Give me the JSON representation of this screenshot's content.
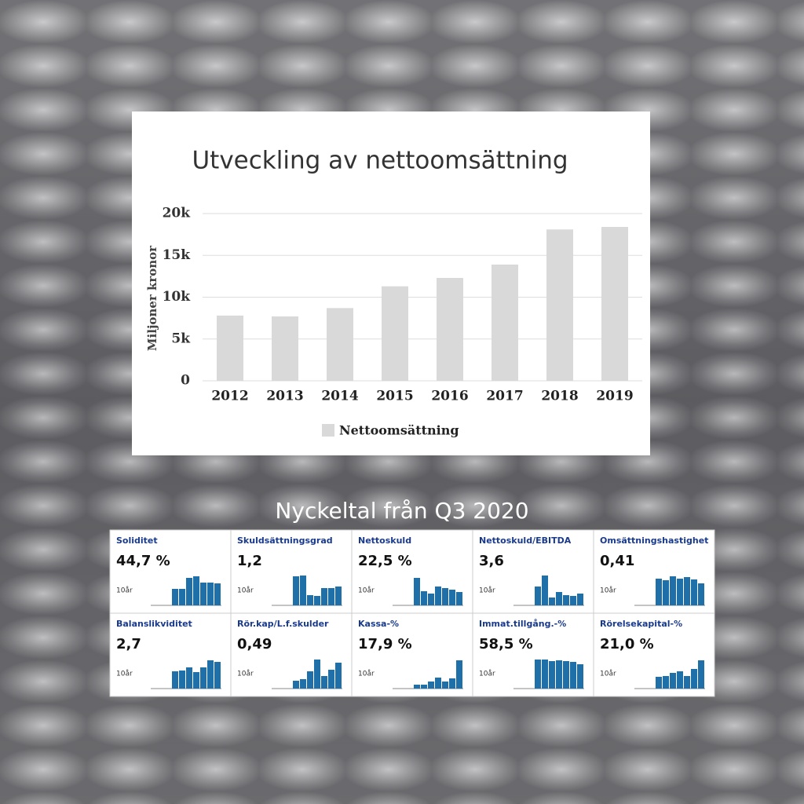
{
  "heading": "Nyckeltal från Q3 2020",
  "chart_data": [
    {
      "type": "bar",
      "title": "Utveckling av nettoomsättning",
      "ylabel": "Miljoner kronor",
      "categories": [
        "2012",
        "2013",
        "2014",
        "2015",
        "2016",
        "2017",
        "2018",
        "2019"
      ],
      "series": [
        {
          "name": "Nettoomsättning",
          "color": "#d9d9d9",
          "values": [
            7800,
            7700,
            8700,
            11300,
            12300,
            13900,
            18100,
            18400
          ]
        }
      ],
      "ylim": [
        0,
        20000
      ],
      "yticks": [
        0,
        {
          "value": 5000,
          "label": "5k"
        },
        {
          "value": 10000,
          "label": "10k"
        },
        {
          "value": 15000,
          "label": "15k"
        },
        {
          "value": 20000,
          "label": "20k"
        }
      ],
      "grid": true,
      "legend": "bottom"
    },
    {
      "type": "mini-bar",
      "title": "Soliditet",
      "headline": "44,7 %",
      "note": "10år",
      "color": "#1f6fa8",
      "ylim": [
        0,
        40
      ],
      "values": [
        null,
        null,
        null,
        21,
        21,
        35,
        37,
        29,
        29,
        28
      ]
    },
    {
      "type": "mini-bar",
      "title": "Skuldsättningsgrad",
      "headline": "1,2",
      "note": "10år",
      "color": "#1f6fa8",
      "ylim": [
        0,
        40
      ],
      "values": [
        null,
        null,
        null,
        37,
        38,
        13,
        12,
        22,
        22,
        24
      ]
    },
    {
      "type": "mini-bar",
      "title": "Nettoskuld",
      "headline": "22,5 %",
      "note": "10år",
      "color": "#1f6fa8",
      "ylim": [
        0,
        40
      ],
      "values": [
        null,
        null,
        null,
        35,
        18,
        15,
        24,
        22,
        20,
        17
      ]
    },
    {
      "type": "mini-bar",
      "title": "Nettoskuld/EBITDA",
      "headline": "3,6",
      "note": "10år",
      "color": "#1f6fa8",
      "ylim": [
        0,
        40
      ],
      "values": [
        null,
        null,
        null,
        24,
        38,
        10,
        17,
        13,
        12,
        15
      ]
    },
    {
      "type": "mini-bar",
      "title": "Omsättningshastighet",
      "headline": "0,41",
      "note": "10år",
      "color": "#1f6fa8",
      "ylim": [
        0,
        40
      ],
      "values": [
        null,
        null,
        null,
        34,
        32,
        37,
        34,
        36,
        33,
        28
      ]
    },
    {
      "type": "mini-bar",
      "title": "Balanslikviditet",
      "headline": "2,7",
      "note": "10år",
      "color": "#1f6fa8",
      "ylim": [
        0,
        40
      ],
      "values": [
        null,
        null,
        null,
        22,
        23,
        27,
        21,
        27,
        36,
        34
      ]
    },
    {
      "type": "mini-bar",
      "title": "Rör.kap/L.f.skulder",
      "headline": "0,49",
      "note": "10år",
      "color": "#1f6fa8",
      "ylim": [
        0,
        40
      ],
      "values": [
        null,
        null,
        null,
        10,
        12,
        22,
        37,
        16,
        24,
        33
      ]
    },
    {
      "type": "mini-bar",
      "title": "Kassa-%",
      "headline": "17,9 %",
      "note": "10år",
      "color": "#1f6fa8",
      "ylim": [
        0,
        40
      ],
      "values": [
        null,
        null,
        null,
        5,
        5,
        9,
        14,
        9,
        13,
        36
      ]
    },
    {
      "type": "mini-bar",
      "title": "Immat.tillgång.-%",
      "headline": "58,5 %",
      "note": "10år",
      "color": "#1f6fa8",
      "ylim": [
        0,
        40
      ],
      "values": [
        null,
        null,
        null,
        37,
        37,
        35,
        36,
        35,
        34,
        31
      ]
    },
    {
      "type": "mini-bar",
      "title": "Rörelsekapital-%",
      "headline": "21,0 %",
      "note": "10år",
      "color": "#1f6fa8",
      "ylim": [
        0,
        40
      ],
      "values": [
        null,
        null,
        null,
        15,
        16,
        20,
        22,
        16,
        25,
        36
      ]
    }
  ]
}
